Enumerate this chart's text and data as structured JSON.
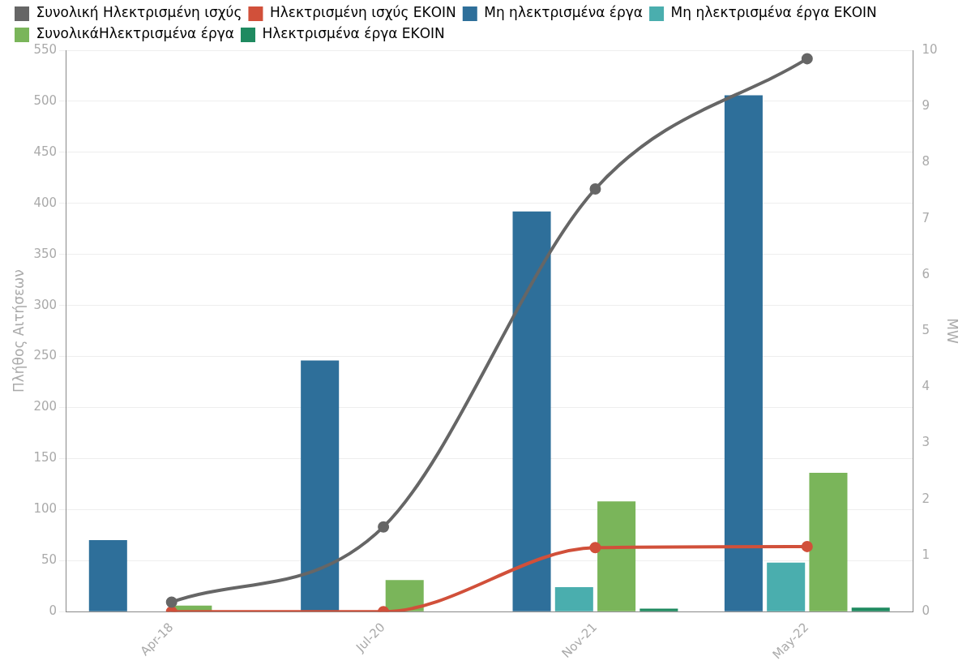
{
  "chart_data": {
    "type": "bar",
    "categories": [
      "Apr-18",
      "Jul-20",
      "Nov-21",
      "May-22"
    ],
    "ylabel": "Πλήθος Αιτήσεων",
    "y2label": "MW",
    "ylim": [
      0,
      550
    ],
    "yticks": [
      0,
      50,
      100,
      150,
      200,
      250,
      300,
      350,
      400,
      450,
      500,
      550
    ],
    "y2lim": [
      0,
      10
    ],
    "y2ticks": [
      0,
      1,
      2,
      3,
      4,
      5,
      6,
      7,
      8,
      9,
      10
    ],
    "grid": "y",
    "legend": "top left",
    "marker": "circle",
    "series": [
      {
        "name": "Συνολική Ηλεκτρισμένη ισχύς",
        "type": "line",
        "axis": "y2",
        "color": "#666666",
        "values": [
          0.17,
          1.51,
          7.53,
          9.85
        ]
      },
      {
        "name": "Ηλεκτρισμένη ισχύς ΕΚΟΙΝ",
        "type": "line",
        "axis": "y2",
        "color": "#d1503a",
        "values": [
          0,
          0,
          1.14,
          1.16
        ]
      },
      {
        "name": "Μη ηλεκτρισμένα έργα",
        "color": "#2e6f9a",
        "values": [
          70,
          246,
          392,
          506
        ]
      },
      {
        "name": "Μη ηλεκτρισμένα έργα ΕΚΟΙΝ",
        "color": "#4aaeae",
        "values": [
          0,
          0,
          24,
          48
        ]
      },
      {
        "name": "ΣυνολικάΗλεκτρισμένα έργα",
        "color": "#7ab55a",
        "values": [
          6,
          31,
          108,
          136
        ]
      },
      {
        "name": "Ηλεκτρισμένα έργα ΕΚΟΙΝ",
        "color": "#1f8a60",
        "values": [
          0,
          0,
          3,
          4
        ]
      }
    ]
  }
}
